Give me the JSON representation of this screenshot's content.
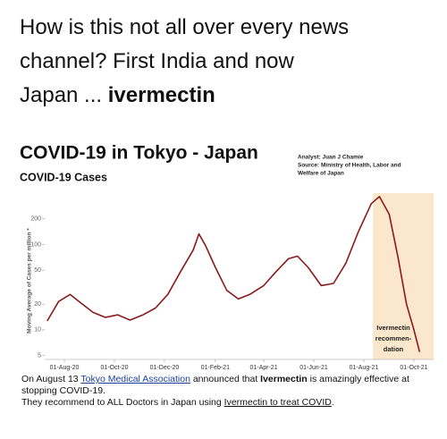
{
  "post": {
    "lines": [
      "How is this not all over every news",
      "channel? First India and now",
      "Japan ... "
    ],
    "emphasis": "ivermectin"
  },
  "chart_data": {
    "type": "line",
    "title": "COVID-19 in Tokyo - Japan",
    "subtitle": "COVID-19 Cases",
    "source_lines": [
      "Analyst: Juan J Chamie",
      "Source: Ministry of Health, Labor and",
      "Welfare of Japan"
    ],
    "y_label": "Moving Average of Cases per million *",
    "x": [
      "2020-07-11",
      "2020-07-25",
      "2020-08-08",
      "2020-08-20",
      "2020-09-05",
      "2020-09-20",
      "2020-10-05",
      "2020-10-20",
      "2020-11-05",
      "2020-11-20",
      "2020-12-05",
      "2020-12-20",
      "2021-01-05",
      "2021-01-12",
      "2021-01-20",
      "2021-02-01",
      "2021-02-15",
      "2021-03-01",
      "2021-03-15",
      "2021-04-01",
      "2021-04-15",
      "2021-05-01",
      "2021-05-12",
      "2021-05-25",
      "2021-06-10",
      "2021-06-25",
      "2021-07-10",
      "2021-07-25",
      "2021-08-10",
      "2021-08-20",
      "2021-09-01",
      "2021-09-12",
      "2021-09-22",
      "2021-10-01",
      "2021-10-08"
    ],
    "values": [
      12.7,
      21.5,
      26,
      21,
      16,
      14,
      15,
      13,
      15,
      18,
      26,
      47,
      86,
      133,
      97,
      54,
      29,
      23,
      26,
      33,
      47,
      68,
      73,
      54,
      33,
      35,
      60,
      139,
      301,
      365,
      225,
      68,
      20,
      10,
      5.5
    ],
    "color": "#8b1a1a",
    "log_scale": true,
    "ylim": [
      4.5,
      400
    ],
    "yticks": [
      5,
      10,
      20,
      50,
      100,
      200
    ],
    "xlim": [
      "2020-07-08",
      "2021-10-25"
    ],
    "xticks": [
      {
        "value": "2020-08-01",
        "label": "01-Aug-20"
      },
      {
        "value": "2020-10-01",
        "label": "01-Oct-20"
      },
      {
        "value": "2020-12-01",
        "label": "01-Dec-20"
      },
      {
        "value": "2021-02-01",
        "label": "01-Feb-21"
      },
      {
        "value": "2021-04-01",
        "label": "01-Apr-21"
      },
      {
        "value": "2021-06-01",
        "label": "01-Jun-21"
      },
      {
        "value": "2021-08-01",
        "label": "01-Aug-21"
      },
      {
        "value": "2021-10-01",
        "label": "01-Oct-21"
      }
    ],
    "shade": {
      "x": [
        "2021-08-12",
        "2021-10-25"
      ],
      "color": "#fbe8cc",
      "label_lines": [
        "Ivermectin",
        "recommen-",
        "dation"
      ]
    }
  },
  "caption": {
    "lines": [
      [
        {
          "text": "On August 13 ",
          "style": "plain"
        },
        {
          "text": "Tokyo Medical Association",
          "style": "link"
        },
        {
          "text": " announced that ",
          "style": "plain"
        },
        {
          "text": "Ivermectin",
          "style": "bold"
        },
        {
          "text": " is amazingly effective at",
          "style": "plain"
        }
      ],
      [
        {
          "text": "stopping COVID-19.",
          "style": "plain"
        }
      ],
      [
        {
          "text": "They recommend to ALL Doctors in Japan using ",
          "style": "plain"
        },
        {
          "text": "Ivermectin to treat COVID",
          "style": "under"
        },
        {
          "text": ".",
          "style": "plain"
        }
      ]
    ]
  }
}
